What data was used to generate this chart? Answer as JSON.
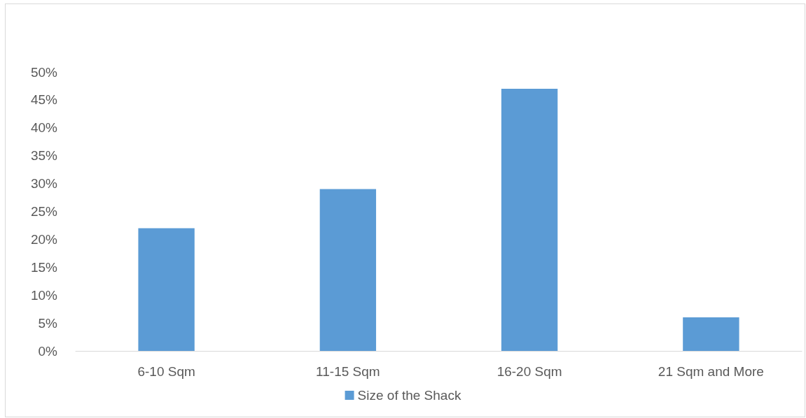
{
  "chart_data": {
    "type": "bar",
    "categories": [
      "6-10 Sqm",
      "11-15 Sqm",
      "16-20 Sqm",
      "21 Sqm and More"
    ],
    "series": [
      {
        "name": "Size of the Shack",
        "color": "#5b9bd5",
        "values": [
          22,
          29,
          47,
          6
        ]
      }
    ],
    "ylim": [
      0,
      50
    ],
    "yticks": [
      {
        "value": 0,
        "label": "0%"
      },
      {
        "value": 5,
        "label": "5%"
      },
      {
        "value": 10,
        "label": "10%"
      },
      {
        "value": 15,
        "label": "15%"
      },
      {
        "value": 20,
        "label": "20%"
      },
      {
        "value": 25,
        "label": "25%"
      },
      {
        "value": 30,
        "label": "30%"
      },
      {
        "value": 35,
        "label": "35%"
      },
      {
        "value": 40,
        "label": "40%"
      },
      {
        "value": 45,
        "label": "45%"
      },
      {
        "value": 50,
        "label": "50%"
      }
    ],
    "legend": "bottom"
  }
}
